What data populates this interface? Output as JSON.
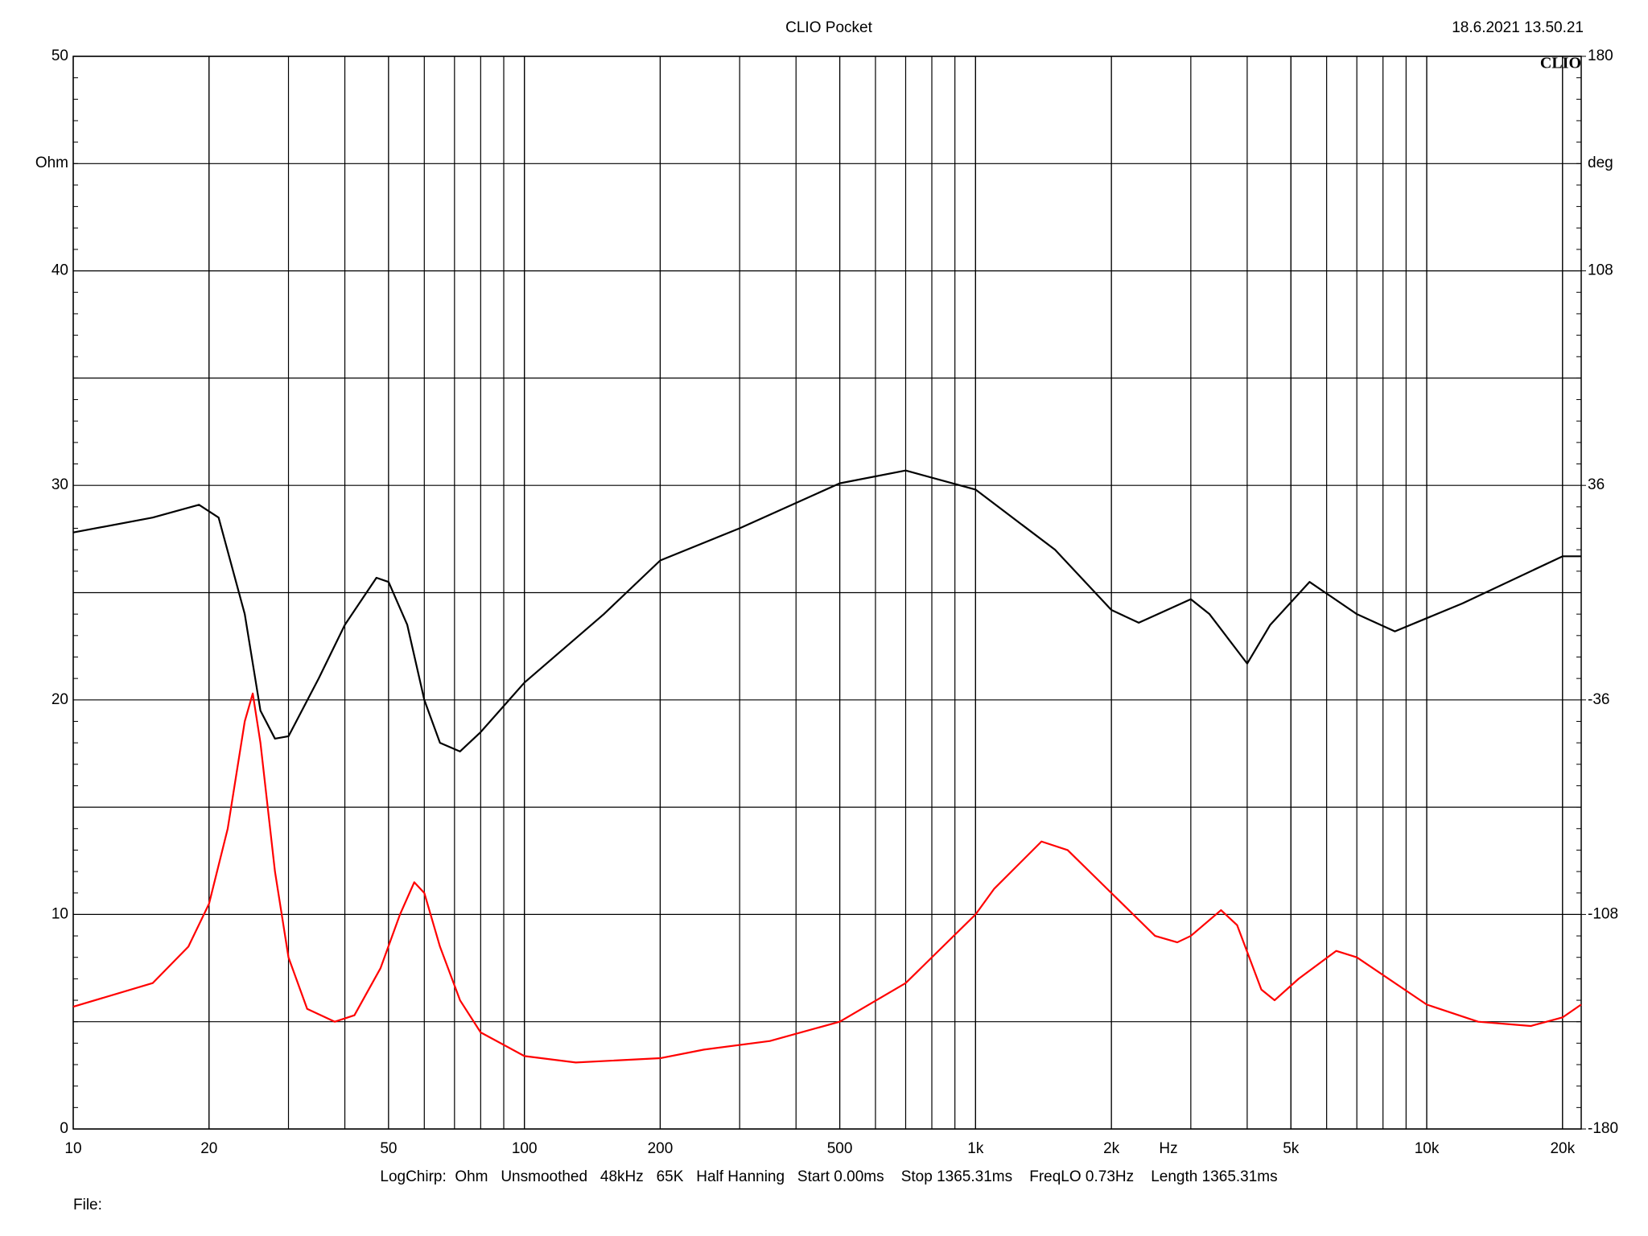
{
  "chart_data": {
    "type": "line",
    "title": "CLIO Pocket",
    "timestamp": "18.6.2021 13.50.21",
    "logo": "CLIO",
    "x_label": "Hz",
    "y_label": "Ohm",
    "y2_label": "deg",
    "footer": "LogChirp:  Ohm   Unsmoothed   48kHz   65K   Half Hanning   Start 0.00ms    Stop 1365.31ms    FreqLO 0.73Hz    Length 1365.31ms",
    "file_label": "File:",
    "xscale": "log",
    "grid": true,
    "xlim": [
      10,
      22000
    ],
    "xticks": [
      10,
      20,
      50,
      100,
      200,
      500,
      {
        "value": 1000,
        "label": "1k"
      },
      {
        "value": 2000,
        "label": "2k"
      },
      {
        "value": 5000,
        "label": "5k"
      },
      {
        "value": 10000,
        "label": "10k"
      },
      {
        "value": 20000,
        "label": "20k"
      }
    ],
    "ylim": [
      0,
      50
    ],
    "yticks": [
      0,
      10,
      20,
      30,
      40,
      50
    ],
    "y2lim": [
      -180,
      180
    ],
    "y2ticks": [
      -180,
      -108,
      -36,
      36,
      108,
      180
    ],
    "series": [
      {
        "color": "#000000",
        "axis": "y2",
        "x": [
          10,
          15,
          19,
          21,
          24,
          26,
          28,
          30,
          35,
          40,
          47,
          50,
          55,
          60,
          65,
          72,
          80,
          100,
          150,
          200,
          300,
          500,
          700,
          1000,
          1500,
          2000,
          2300,
          3000,
          3300,
          4000,
          4500,
          5500,
          7000,
          8500,
          12000,
          20000,
          22000
        ],
        "values": [
          20.2,
          25.2,
          29.5,
          25.2,
          -7.2,
          -39.6,
          -49,
          -48.2,
          -28.8,
          -10.8,
          5,
          3.6,
          -10.8,
          -36,
          -50.4,
          -53.3,
          -46.8,
          -30.2,
          -7.2,
          10.8,
          21.6,
          36.7,
          41,
          34.6,
          14.4,
          -5.8,
          -10.1,
          -2.2,
          -7.2,
          -23.8,
          -10.8,
          3.6,
          -7.2,
          -13,
          -3.6,
          12.2,
          12.2
        ]
      },
      {
        "color": "#ff0000",
        "x": [
          10,
          15,
          18,
          20,
          22,
          24,
          25,
          26,
          28,
          30,
          33,
          38,
          42,
          48,
          53,
          57,
          60,
          65,
          72,
          80,
          100,
          130,
          200,
          250,
          350,
          500,
          700,
          1000,
          1100,
          1400,
          1600,
          2000,
          2500,
          2800,
          3000,
          3500,
          3800,
          4300,
          4600,
          5200,
          6300,
          7000,
          10000,
          13000,
          17000,
          20000,
          22000
        ],
        "values": [
          5.7,
          6.8,
          8.5,
          10.5,
          14,
          19,
          20.3,
          18,
          12,
          8,
          5.6,
          5,
          5.3,
          7.5,
          10,
          11.5,
          11,
          8.5,
          6,
          4.5,
          3.4,
          3.1,
          3.3,
          3.7,
          4.1,
          5,
          6.8,
          10,
          11.2,
          13.4,
          13,
          11,
          9,
          8.7,
          9,
          10.2,
          9.5,
          6.5,
          6,
          7,
          8.3,
          8,
          5.8,
          5,
          4.8,
          5.2,
          5.8
        ]
      }
    ]
  }
}
